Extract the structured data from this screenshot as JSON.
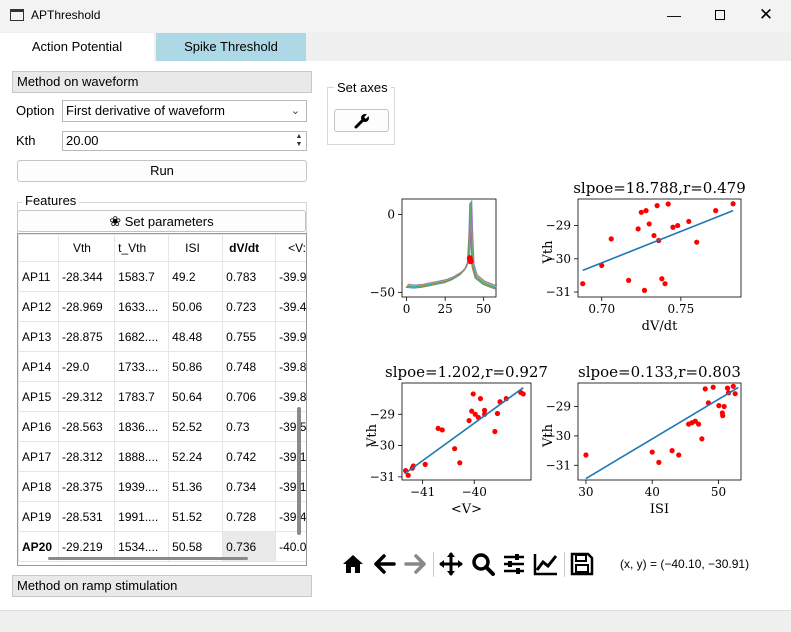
{
  "window": {
    "title": "APThreshold"
  },
  "tabs": [
    "Action Potential",
    "Spike Threshold"
  ],
  "method_waveform": {
    "header": "Method on waveform",
    "option_label": "Option",
    "option_value": "First derivative of waveform",
    "kth_label": "Kth",
    "kth_value": "20.00",
    "run_label": "Run"
  },
  "features": {
    "title": "Features",
    "set_parameters": "Set parameters",
    "columns": [
      "Vth",
      "t_Vth",
      "ISI",
      "dV/dt",
      "<V:"
    ],
    "rows": [
      {
        "label": "AP11",
        "cells": [
          "-28.344",
          "1583.7",
          "49.2",
          "0.783",
          "-39.9"
        ]
      },
      {
        "label": "AP12",
        "cells": [
          "-28.969",
          "1633....",
          "50.06",
          "0.723",
          "-39.4"
        ]
      },
      {
        "label": "AP13",
        "cells": [
          "-28.875",
          "1682....",
          "48.48",
          "0.755",
          "-39.9"
        ]
      },
      {
        "label": "AP14",
        "cells": [
          "-29.0",
          "1733....",
          "50.86",
          "0.748",
          "-39.8"
        ]
      },
      {
        "label": "AP15",
        "cells": [
          "-29.312",
          "1783.7",
          "50.64",
          "0.706",
          "-39.8"
        ]
      },
      {
        "label": "AP16",
        "cells": [
          "-28.563",
          "1836....",
          "52.52",
          "0.73",
          "-39.5"
        ]
      },
      {
        "label": "AP17",
        "cells": [
          "-28.312",
          "1888....",
          "52.24",
          "0.742",
          "-39.1"
        ]
      },
      {
        "label": "AP18",
        "cells": [
          "-28.375",
          "1939....",
          "51.36",
          "0.734",
          "-39.1"
        ]
      },
      {
        "label": "AP19",
        "cells": [
          "-28.531",
          "1991....",
          "51.52",
          "0.728",
          "-39.4"
        ]
      },
      {
        "label": "AP20",
        "cells": [
          "-29.219",
          "1534....",
          "50.58",
          "0.736",
          "-40.0"
        ]
      }
    ]
  },
  "method_ramp": {
    "header": "Method on ramp stimulation"
  },
  "set_axes": {
    "title": "Set axes",
    "icon": "wrench-icon"
  },
  "toolbar": {
    "icons": [
      "home-icon",
      "back-icon",
      "forward-icon",
      "pan-icon",
      "zoom-icon",
      "configure-subplots-icon",
      "edit-axis-icon",
      "save-icon"
    ],
    "coords": "(x, y) = (−40.10, −30.91)"
  },
  "colors": {
    "tab_active": "#add8e6",
    "scatter_point": "#ff0000",
    "fit_line": "#1f77b4"
  },
  "chart_data": [
    {
      "type": "line",
      "title": "",
      "xlabel": "",
      "ylabel": "",
      "xticks": [
        "0",
        "25",
        "50"
      ],
      "yticks": [
        "0",
        "−50"
      ],
      "xlim": [
        -3,
        58
      ],
      "ylim": [
        -53,
        10
      ],
      "note_series": "overlaid action potential waveforms with red threshold markers",
      "series": [
        {
          "x": [
            0,
            5,
            10,
            15,
            20,
            25,
            30,
            35,
            38,
            40,
            41,
            41.5,
            42,
            43,
            45,
            50,
            55,
            58
          ],
          "y": [
            -46,
            -46.5,
            -46,
            -45,
            -44,
            -43,
            -41,
            -38,
            -35,
            -30,
            -10,
            8,
            -10,
            -33,
            -40,
            -44,
            -46,
            -47
          ]
        }
      ],
      "threshold_points": [
        {
          "x": 41,
          "y": -28
        },
        {
          "x": 41.5,
          "y": -30
        }
      ]
    },
    {
      "type": "scatter",
      "title": "slpoe=18.788,r=0.479",
      "xlabel": "dV/dt",
      "ylabel": "Vth",
      "xticks": [
        "0.70",
        "0.75"
      ],
      "yticks": [
        "−29",
        "−30",
        "−31"
      ],
      "xlim": [
        0.685,
        0.788
      ],
      "ylim": [
        -31.15,
        -28.2
      ],
      "x": [
        0.688,
        0.7,
        0.706,
        0.717,
        0.723,
        0.725,
        0.727,
        0.728,
        0.73,
        0.733,
        0.735,
        0.736,
        0.738,
        0.74,
        0.742,
        0.745,
        0.748,
        0.755,
        0.76,
        0.772,
        0.783
      ],
      "y": [
        -30.75,
        -30.2,
        -29.4,
        -30.65,
        -29.1,
        -28.6,
        -30.95,
        -28.55,
        -28.95,
        -29.3,
        -28.4,
        -29.45,
        -30.6,
        -30.75,
        -28.35,
        -29.05,
        -29.0,
        -28.875,
        -29.5,
        -28.55,
        -28.344
      ],
      "fit": {
        "x": [
          0.688,
          0.783
        ],
        "y": [
          -30.35,
          -28.55
        ]
      }
    },
    {
      "type": "scatter",
      "title": "slpoe=1.202,r=0.927",
      "xlabel": "<V>",
      "ylabel": "Vth",
      "xticks": [
        "−41",
        "−40"
      ],
      "yticks": [
        "−29",
        "−30",
        "−31"
      ],
      "xlim": [
        -41.4,
        -38.9
      ],
      "ylim": [
        -31.1,
        -28.0
      ],
      "x": [
        -41.33,
        -41.28,
        -41.2,
        -41.18,
        -40.95,
        -40.7,
        -40.62,
        -40.38,
        -40.28,
        -40.1,
        -40.05,
        -40.02,
        -39.98,
        -39.92,
        -39.88,
        -39.8,
        -39.8,
        -39.6,
        -39.55,
        -39.5,
        -39.38,
        -39.1,
        -39.05
      ],
      "y": [
        -30.8,
        -30.95,
        -30.72,
        -30.65,
        -30.6,
        -29.45,
        -29.5,
        -30.1,
        -30.55,
        -29.2,
        -28.9,
        -28.35,
        -29.0,
        -29.1,
        -28.5,
        -28.875,
        -29.0,
        -29.55,
        -28.975,
        -28.6,
        -28.5,
        -28.3,
        -28.35
      ],
      "fit": {
        "x": [
          -41.35,
          -39.05
        ],
        "y": [
          -30.9,
          -28.15
        ]
      }
    },
    {
      "type": "scatter",
      "title": "slpoe=0.133,r=0.803",
      "xlabel": "ISI",
      "ylabel": "Vth",
      "xticks": [
        "30",
        "40",
        "50"
      ],
      "yticks": [
        "−29",
        "−30",
        "−31"
      ],
      "xlim": [
        28.8,
        53.4
      ],
      "ylim": [
        -31.5,
        -28.2
      ],
      "x": [
        30,
        40,
        41,
        43,
        44,
        45.5,
        46,
        46.5,
        47,
        47.5,
        48,
        48.48,
        49.2,
        50.06,
        50.58,
        50.64,
        50.86,
        51.36,
        51.52,
        52.24,
        52.52
      ],
      "y": [
        -30.65,
        -30.55,
        -30.9,
        -30.5,
        -30.65,
        -29.6,
        -29.55,
        -29.5,
        -29.6,
        -30.1,
        -28.4,
        -28.875,
        -28.344,
        -28.969,
        -29.219,
        -29.312,
        -29.0,
        -28.375,
        -28.531,
        -28.312,
        -28.563
      ],
      "fit": {
        "x": [
          30,
          53
        ],
        "y": [
          -31.45,
          -28.35
        ]
      }
    }
  ]
}
